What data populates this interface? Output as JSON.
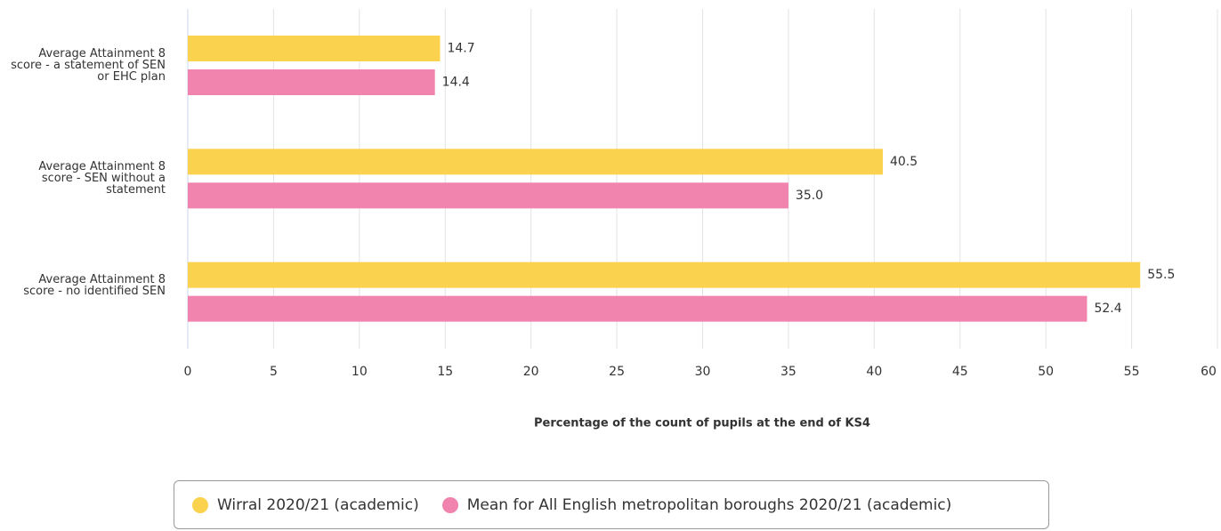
{
  "chart_data": {
    "type": "bar",
    "orientation": "horizontal",
    "categories": [
      "Average Attainment 8 score - a statement of SEN or EHC plan",
      "Average Attainment 8 score - SEN without a statement",
      "Average Attainment 8 score - no identified SEN"
    ],
    "series": [
      {
        "name": "Wirral 2020/21 (academic)",
        "color": "#fbd24e",
        "values": [
          14.7,
          40.5,
          55.5
        ],
        "value_labels": [
          "14.7",
          "40.5",
          "55.5"
        ]
      },
      {
        "name": "Mean for All English metropolitan boroughs 2020/21 (academic)",
        "color": "#f084ae",
        "values": [
          14.4,
          35.0,
          52.4
        ],
        "value_labels": [
          "14.4",
          "35.0",
          "52.4"
        ]
      }
    ],
    "x_label": "Percentage of the count of pupils at the end of KS4",
    "xlim": [
      0,
      60
    ],
    "xticks": [
      0,
      5,
      10,
      15,
      20,
      25,
      30,
      35,
      40,
      45,
      50,
      55,
      60
    ],
    "grid": true,
    "legend": "bottom"
  }
}
